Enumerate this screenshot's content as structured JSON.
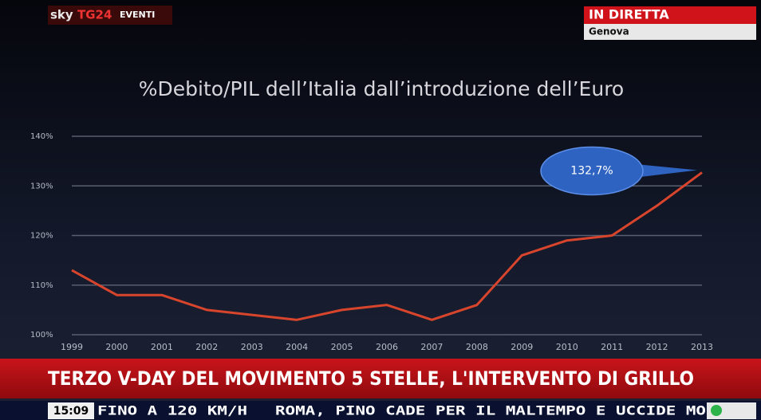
{
  "broadcast": {
    "logo": {
      "brand": "sky",
      "channel": "TG24",
      "section": "EVENTI"
    },
    "live": "IN DIRETTA",
    "location": "Genova",
    "headline": "TERZO V-DAY DEL MOVIMENTO 5 STELLE, L'INTERVENTO DI GRILLO",
    "time": "15:09",
    "ticker": [
      "FINO A 120 KM/H",
      "ROMA, PINO CADE PER IL MALTEMPO E UCCIDE MO"
    ]
  },
  "chart_data": {
    "type": "line",
    "title": "%Debito/PIL dell’Italia dall’introduzione dell’Euro",
    "categories": [
      "1999",
      "2000",
      "2001",
      "2002",
      "2003",
      "2004",
      "2005",
      "2006",
      "2007",
      "2008",
      "2009",
      "2010",
      "2011",
      "2012",
      "2013"
    ],
    "series": [
      {
        "name": "%Debito/PIL",
        "color": "#d8452c",
        "values": [
          113,
          108,
          108,
          105,
          104,
          103,
          105,
          106,
          103,
          106,
          116,
          119,
          120,
          126,
          132.7
        ],
        "value_labels": [
          null,
          null,
          null,
          null,
          null,
          null,
          null,
          null,
          null,
          null,
          null,
          null,
          null,
          null,
          "132,7%"
        ]
      }
    ],
    "ylim": [
      100,
      140
    ],
    "yticks": [
      {
        "value": 100,
        "label": "100%"
      },
      {
        "value": 110,
        "label": "110%"
      },
      {
        "value": 120,
        "label": "120%"
      },
      {
        "value": 130,
        "label": "130%"
      },
      {
        "value": 140,
        "label": "140%"
      }
    ],
    "grid": true
  }
}
